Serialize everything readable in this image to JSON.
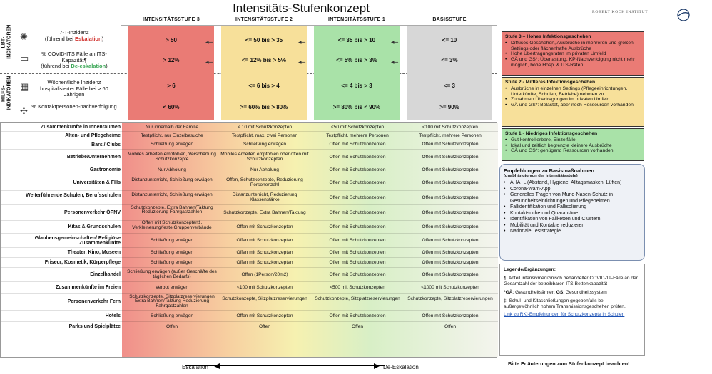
{
  "title": "Intensitäts-Stufenkonzept",
  "rki": "ROBERT KOCH INSTITUT",
  "upper_left_labels": {
    "lbt": "LBT-\nINDIKATOREN",
    "hilfs": "HILFS-\nINDIKATOREN"
  },
  "indicators": [
    {
      "icon": "virus-icon",
      "glyph": "✺",
      "text": "7-T-Inzidenz",
      "sub": "(führend bei ",
      "hl": "Eskalation",
      "hl_color": "#d0312d",
      "end": ")"
    },
    {
      "icon": "monitor-icon",
      "glyph": "▭",
      "text": "% COVID-ITS Fälle an ITS-Kapazität¶",
      "sub": "(führend bei ",
      "hl": "De-eskalation",
      "hl_color": "#3aa655",
      "end": ")"
    },
    {
      "icon": "hospital-icon",
      "glyph": "▦",
      "text": "Wöchentliche Inzidenz hospitalisierter Fälle bei > 60 Jährigen",
      "sub": "",
      "hl": "",
      "hl_color": "",
      "end": ""
    },
    {
      "icon": "network-icon",
      "glyph": "✣",
      "text": "% Kontaktpersonen-nachverfolgung",
      "sub": "",
      "hl": "",
      "hl_color": "",
      "end": ""
    }
  ],
  "columns": [
    {
      "head": "INTENSITÄTSSTUFE 3",
      "color": "#ea7b75",
      "vals": [
        "> 50",
        "> 12%",
        "> 6",
        "< 60%"
      ]
    },
    {
      "head": "INTENSITÄTSSTUFE 2",
      "color": "#f7e09a",
      "vals": [
        "<= 50 bis > 35",
        "<= 12% bis > 5%",
        "<= 6 bis > 4",
        ">= 60% bis > 80%"
      ]
    },
    {
      "head": "INTENSITÄTSSTUFE 1",
      "color": "#a9e2a8",
      "vals": [
        "<= 35 bis > 10",
        "<= 5% bis > 3%",
        "<= 4 bis > 3",
        ">= 80% bis < 90%"
      ]
    },
    {
      "head": "BASISSTUFE",
      "color": "#d7d7d7",
      "vals": [
        "<= 10",
        "<= 3%",
        "<= 3",
        ">= 90%"
      ]
    }
  ],
  "rows": [
    {
      "label": "Zusammenkünfte in Innenräumen",
      "c": [
        "Nur innerhalb der Familie",
        "< 10 mit Schutzkonzepten",
        "<50 mit Schutzkonzepten",
        "<100 mit Schutzkonzepten"
      ]
    },
    {
      "label": "Alten- und Pflegeheime",
      "c": [
        "Testpflicht, nur Einzelbesuche",
        "Testpflicht, max. zwei Personen",
        "Testpflicht, mehrere Personen",
        "Testpflicht, mehrere Personen"
      ]
    },
    {
      "label": "Bars / Clubs",
      "c": [
        "Schließung erwägen",
        "Schließung erwägen",
        "Offen mit Schutzkonzepten",
        "Offen mit Schutzkonzepten"
      ]
    },
    {
      "label": "Betriebe/Unternehmen",
      "c": [
        "Mobiles Arbeiten empfohlen, Verschärfung Schutzkonzepte",
        "Mobiles Arbeiten empfohlen oder offen mit Schutzkonzepten",
        "Offen mit Schutzkonzepten",
        "Offen mit Schutzkonzepten"
      ]
    },
    {
      "label": "Gastronomie",
      "c": [
        "Nur Abholung",
        "Nur Abholung",
        "Offen mit Schutzkonzepten",
        "Offen mit Schutzkonzepten"
      ]
    },
    {
      "label": "Universitäten & FHs",
      "c": [
        "Distanzunterricht, Schließung erwägen",
        "Offen, Schutzkonzepte, Reduzierung Personenzahl",
        "Offen mit Schutzkonzepten",
        "Offen mit Schutzkonzepten"
      ]
    },
    {
      "label": "Weiterführende Schulen, Berufsschulen",
      "c": [
        "Distanzunterricht, Schließung erwägen",
        "Distanzunterricht, Reduzierung Klassenstärke",
        "Offen mit Schutzkonzepten",
        "Offen mit Schutzkonzepten"
      ]
    },
    {
      "label": "Personenverkehr ÖPNV",
      "c": [
        "Schutzkonzepte, Extra Bahnen/Taktung Reduzierung Fahrgastzahlen",
        "Schutzkonzepte, Extra Bahnen/Taktung",
        "Offen mit Schutzkonzepten",
        "Offen mit Schutzkonzepten"
      ]
    },
    {
      "label": "Kitas & Grundschulen",
      "c": [
        "Offen mit Schutzkonzepten‡, Verkleinerung/feste Gruppenverbände",
        "Offen mit Schutzkonzepten",
        "Offen mit Schutzkonzepten",
        "Offen mit Schutzkonzepten"
      ]
    },
    {
      "label": "Glaubensgemeinschaften/ Religiöse Zusammenkünfte",
      "c": [
        "Schließung erwägen",
        "Offen mit Schutzkonzepten",
        "Offen mit Schutzkonzepten",
        "Offen mit Schutzkonzepten"
      ]
    },
    {
      "label": "Theater, Kino, Museen",
      "c": [
        "Schließung erwägen",
        "Offen mit Schutzkonzepten",
        "Offen mit Schutzkonzepten",
        "Offen mit Schutzkonzepten"
      ]
    },
    {
      "label": "Friseur, Kosmetik, Körperpflege",
      "c": [
        "Schließung erwägen",
        "Offen mit Schutzkonzepten",
        "Offen mit Schutzkonzepten",
        "Offen mit Schutzkonzepten"
      ]
    },
    {
      "label": "Einzelhandel",
      "c": [
        "Schließung erwägen (außer Geschäfte des täglichen Bedarfs)",
        "Offen (1Person/20m2)",
        "Offen mit Schutzkonzepten",
        "Offen mit Schutzkonzepten"
      ]
    },
    {
      "label": "Zusammenkünfte im Freien",
      "c": [
        "Verbot erwägen",
        "<100 mit Schutzkonzepten",
        "<500 mit Schutzkonzepten",
        "<1000 mit Schutzkonzepten"
      ]
    },
    {
      "label": "Personenverkehr Fern",
      "c": [
        "Schutzkonzepte, Sitzplatzreservierungen Extra Bahnen/Taktung Reduzierung Fahrgastzahlen",
        "Schutzkonzepte, Sitzplatzreservierungen",
        "Schutzkonzepte, Sitzplatzreservierungen",
        "Schutzkonzepte, Sitzplatzreservierungen"
      ]
    },
    {
      "label": "Hotels",
      "c": [
        "Schließung erwägen",
        "Offen mit Schutzkonzepten",
        "Offen mit Schutzkonzepten",
        "Offen mit Schutzkonzepten"
      ]
    },
    {
      "label": "Parks und Spielplätze",
      "c": [
        "Offen",
        "Offen",
        "Offen",
        "Offen"
      ]
    }
  ],
  "axis": {
    "left": "Eskalation",
    "right": "De-Eskalation"
  },
  "levels": [
    {
      "head": "Stufe 3 – Hohes Infektionsgeschehen",
      "color": "#ea7b75",
      "items": [
        "Diffuses Geschehen, Ausbrüche in mehreren und großen Settings oder flächenhafte Ausbrüche",
        "Hohe Übertragungsraten im privaten Umfeld",
        "GÄ und GS*: Überlastung, KP-Nachverfolgung nicht mehr möglich, hohe Hosp. & ITS-Raten"
      ]
    },
    {
      "head": "Stufe 2 - Mittleres Infektionsgeschehen",
      "color": "#f7e09a",
      "items": [
        "Ausbrüche in einzelnen Settings (Pflegeeinrichtungen, Unterkünfte, Schulen, Betriebe) nehmen zu",
        "Zunahmen Übertragungen im privaten Umfeld",
        "GÄ und GS*: Belastet, aber noch Ressourcen vorhanden"
      ]
    },
    {
      "head": "Stufe 1 - Niedriges Infektionsgeschehen",
      "color": "#a9e2a8",
      "items": [
        "Gut kontrollierbare, Einzelfälle,",
        "lokal und zeitlich begrenzte kleinere Ausbrüche",
        "GÄ und GS*: genügend Ressourcen vorhanden"
      ]
    }
  ],
  "recommendations": {
    "head": "Empfehlungen zu Basismaßnahmen",
    "sub": "(unabhängig von der Intensitätsstufe)",
    "items": [
      "AHA+L (Abstand, Hygiene, Alltagsmasken, Lüften)",
      "Corona-Warn-App",
      "Generelles Tragen von Mund-Nasen-Schutz in Gesundheitseinrichtungen und Pflegeheimen",
      "Fallidentifikation und Fallisolierung",
      "Kontaktsuche und Quarantäne",
      "Identifikation von Fallketten und Clustern",
      "Mobilität und Kontakte reduzieren",
      "Nationale Teststrategie"
    ]
  },
  "legend": {
    "head": "Legende/Ergänzungen:",
    "p1": "¶: Anteil intensivmedizinisch behandelter COVID-19-Fälle an der Gesamtzahl der betreibbaren ITS-Bettenkapazität",
    "p2a": "*GÄ",
    "p2b": ": Gesundheitsämter; ",
    "p2c": "GS",
    "p2d": ": Gesundheitssystem",
    "p3": "‡: Schul- und Kitaschließungen gegebenfalls bei außergewöhnlich hohem Transmissionsgeschehen prüfen.",
    "link": "Link zu RKI-Empfehlungen für Schutzkonzepte in Schulen"
  },
  "footer": "Bitte Erläuterungen zum Stufenkonzept beachten!"
}
